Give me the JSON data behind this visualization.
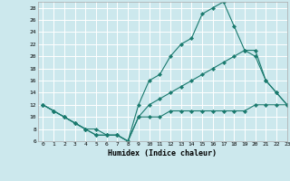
{
  "bg_color": "#cce8ed",
  "grid_color": "#ffffff",
  "line_color": "#1a7a6e",
  "xlabel": "Humidex (Indice chaleur)",
  "ylim": [
    6,
    29
  ],
  "xlim": [
    -0.5,
    23
  ],
  "yticks": [
    6,
    8,
    10,
    12,
    14,
    16,
    18,
    20,
    22,
    24,
    26,
    28
  ],
  "xticks": [
    0,
    1,
    2,
    3,
    4,
    5,
    6,
    7,
    8,
    9,
    10,
    11,
    12,
    13,
    14,
    15,
    16,
    17,
    18,
    19,
    20,
    21,
    22,
    23
  ],
  "line1_x": [
    0,
    1,
    2,
    3,
    4,
    5,
    6,
    7,
    8,
    9,
    10,
    11,
    12,
    13,
    14,
    15,
    16,
    17,
    18,
    19,
    20,
    21,
    22,
    23
  ],
  "line1_y": [
    12,
    11,
    10,
    9,
    8,
    7,
    7,
    7,
    6,
    10,
    10,
    10,
    11,
    11,
    11,
    11,
    11,
    11,
    11,
    11,
    12,
    12,
    12,
    12
  ],
  "line2_x": [
    0,
    1,
    2,
    3,
    4,
    5,
    6,
    7,
    8,
    9,
    10,
    11,
    12,
    13,
    14,
    15,
    16,
    17,
    18,
    19,
    20,
    21,
    22,
    23
  ],
  "line2_y": [
    12,
    11,
    10,
    9,
    8,
    8,
    7,
    7,
    6,
    12,
    16,
    17,
    20,
    22,
    23,
    27,
    28,
    29,
    25,
    21,
    21,
    16,
    14,
    12
  ],
  "line3_x": [
    0,
    1,
    2,
    3,
    4,
    5,
    6,
    7,
    8,
    9,
    10,
    11,
    12,
    13,
    14,
    15,
    16,
    17,
    18,
    19,
    20,
    21,
    22,
    23
  ],
  "line3_y": [
    12,
    11,
    10,
    9,
    8,
    7,
    7,
    7,
    6,
    10,
    12,
    13,
    14,
    15,
    16,
    17,
    18,
    19,
    20,
    21,
    20,
    16,
    14,
    12
  ],
  "figsize": [
    3.2,
    2.0
  ],
  "dpi": 100
}
